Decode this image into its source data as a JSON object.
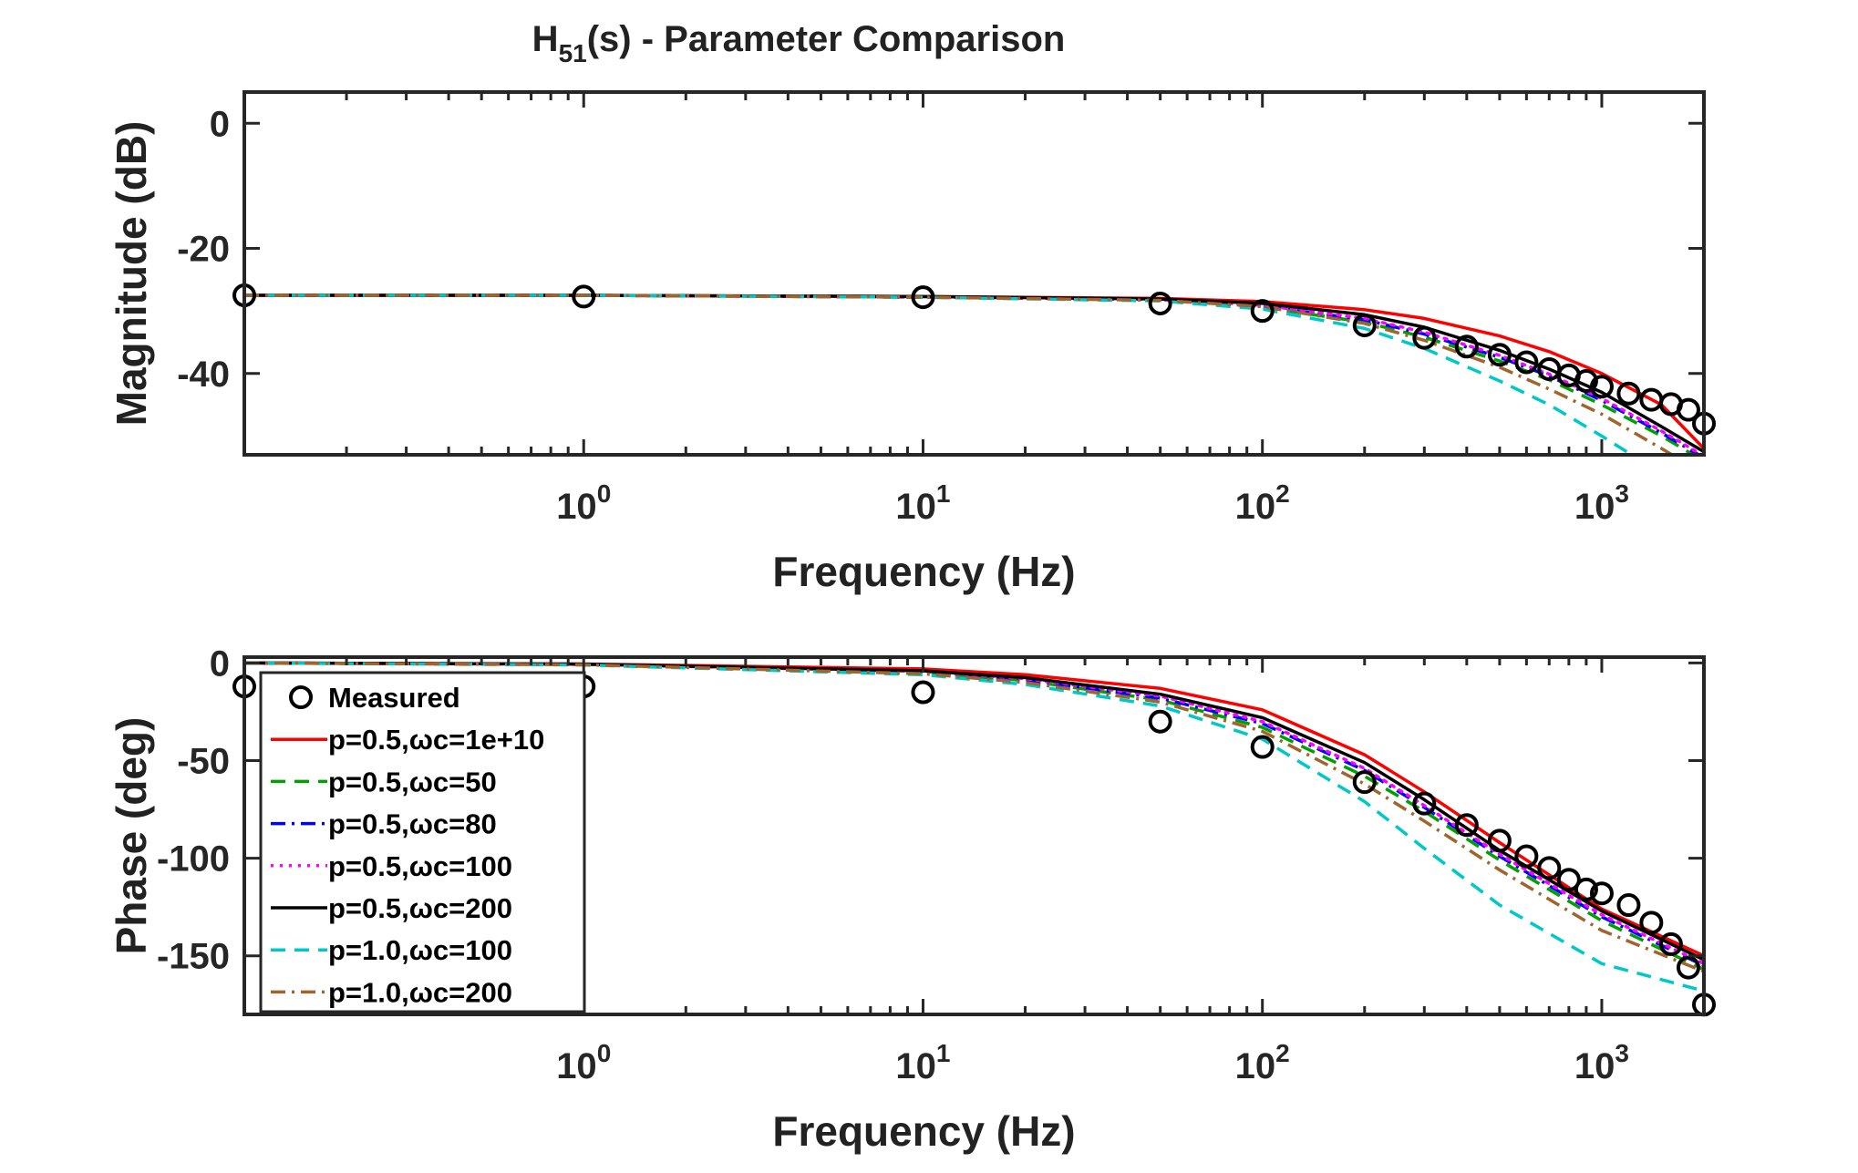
{
  "figure": {
    "title_main": "H",
    "title_sub": "51",
    "title_rest": "(s) - Parameter Comparison"
  },
  "legend": [
    {
      "label": "Measured",
      "color": "#000000",
      "style": "marker"
    },
    {
      "label": "p=0.5,ωc=1e+10",
      "color": "#ff0000",
      "style": "solid"
    },
    {
      "label": "p=0.5,ωc=50",
      "color": "#00a000",
      "style": "dashed"
    },
    {
      "label": "p=0.5,ωc=80",
      "color": "#0000ff",
      "style": "dashdot"
    },
    {
      "label": "p=0.5,ωc=100",
      "color": "#ff00ff",
      "style": "dotted"
    },
    {
      "label": "p=0.5,ωc=200",
      "color": "#000000",
      "style": "solid"
    },
    {
      "label": "p=1.0,ωc=100",
      "color": "#00c8c8",
      "style": "dashed"
    },
    {
      "label": "p=1.0,ωc=200",
      "color": "#a0642d",
      "style": "dashdot"
    }
  ],
  "chart_data": [
    {
      "type": "line",
      "xscale": "log",
      "xlim": [
        0.1,
        2000
      ],
      "ylim": [
        -53,
        5
      ],
      "xlabel": "Frequency (Hz)",
      "ylabel": "Magnitude (dB)",
      "xticks": [
        1,
        10,
        100,
        1000
      ],
      "xtick_labels": [
        {
          "base": "10",
          "exp": "0"
        },
        {
          "base": "10",
          "exp": "1"
        },
        {
          "base": "10",
          "exp": "2"
        },
        {
          "base": "10",
          "exp": "3"
        }
      ],
      "yticks": [
        0,
        -20,
        -40
      ],
      "ytick_labels": [
        "0",
        "-20",
        "-40"
      ],
      "grid": false,
      "measured": {
        "name": "Measured",
        "x": [
          0.1,
          1,
          10,
          50,
          100,
          200,
          300,
          400,
          500,
          600,
          700,
          800,
          900,
          1000,
          1200,
          1400,
          1600,
          1800,
          2000
        ],
        "y": [
          -27.5,
          -27.7,
          -27.8,
          -28.8,
          -30.0,
          -32.3,
          -34.3,
          -35.7,
          -37.0,
          -38.2,
          -39.3,
          -40.3,
          -41.2,
          -42.1,
          -43.2,
          -44.2,
          -44.9,
          -45.8,
          -48.0
        ]
      },
      "series": [
        {
          "name": "p=0.5,ωc=1e+10",
          "x": [
            0.1,
            1,
            10,
            50,
            100,
            200,
            300,
            500,
            700,
            1000,
            1500,
            2000
          ],
          "y": [
            -27.5,
            -27.5,
            -27.7,
            -28.0,
            -28.5,
            -29.8,
            -31.2,
            -34.0,
            -36.5,
            -40.0,
            -45.0,
            -52.0
          ]
        },
        {
          "name": "p=0.5,ωc=50",
          "x": [
            0.1,
            1,
            10,
            50,
            100,
            200,
            300,
            500,
            700,
            1000,
            1500,
            2000
          ],
          "y": [
            -27.5,
            -27.5,
            -27.8,
            -28.3,
            -29.4,
            -31.8,
            -34.2,
            -38.0,
            -41.0,
            -45.0,
            -50.0,
            -54.0
          ]
        },
        {
          "name": "p=0.5,ωc=80",
          "x": [
            0.1,
            1,
            10,
            50,
            100,
            200,
            300,
            500,
            700,
            1000,
            1500,
            2000
          ],
          "y": [
            -27.5,
            -27.5,
            -27.8,
            -28.2,
            -29.2,
            -31.4,
            -33.7,
            -37.4,
            -40.4,
            -44.3,
            -49.5,
            -53.5
          ]
        },
        {
          "name": "p=0.5,ωc=100",
          "x": [
            0.1,
            1,
            10,
            50,
            100,
            200,
            300,
            500,
            700,
            1000,
            1500,
            2000
          ],
          "y": [
            -27.5,
            -27.5,
            -27.8,
            -28.2,
            -29.1,
            -31.2,
            -33.4,
            -37.1,
            -40.1,
            -44.0,
            -49.2,
            -53.2
          ]
        },
        {
          "name": "p=0.5,ωc=200",
          "x": [
            0.1,
            1,
            10,
            50,
            100,
            200,
            300,
            500,
            700,
            1000,
            1500,
            2000
          ],
          "y": [
            -27.5,
            -27.5,
            -27.7,
            -28.1,
            -28.8,
            -30.6,
            -32.6,
            -36.3,
            -39.3,
            -43.0,
            -48.5,
            -52.5
          ]
        },
        {
          "name": "p=1.0,ωc=100",
          "x": [
            0.1,
            1,
            10,
            50,
            100,
            200,
            300,
            500,
            700,
            1000,
            1500,
            2000
          ],
          "y": [
            -27.5,
            -27.5,
            -27.8,
            -28.4,
            -29.7,
            -32.8,
            -36.0,
            -41.2,
            -45.0,
            -50.0,
            -56.0,
            -60.0
          ]
        },
        {
          "name": "p=1.0,ωc=200",
          "x": [
            0.1,
            1,
            10,
            50,
            100,
            200,
            300,
            500,
            700,
            1000,
            1500,
            2000
          ],
          "y": [
            -27.5,
            -27.5,
            -27.8,
            -28.3,
            -29.3,
            -32.0,
            -34.7,
            -39.0,
            -42.5,
            -46.5,
            -52.0,
            -56.0
          ]
        }
      ]
    },
    {
      "type": "line",
      "xscale": "log",
      "xlim": [
        0.1,
        2000
      ],
      "ylim": [
        -180,
        3
      ],
      "xlabel": "Frequency (Hz)",
      "ylabel": "Phase (deg)",
      "xticks": [
        1,
        10,
        100,
        1000
      ],
      "xtick_labels": [
        {
          "base": "10",
          "exp": "0"
        },
        {
          "base": "10",
          "exp": "1"
        },
        {
          "base": "10",
          "exp": "2"
        },
        {
          "base": "10",
          "exp": "3"
        }
      ],
      "yticks": [
        0,
        -50,
        -100,
        -150
      ],
      "ytick_labels": [
        "0",
        "-50",
        "-100",
        "-150"
      ],
      "grid": false,
      "legend_position": "bottom-left",
      "measured": {
        "name": "Measured",
        "x": [
          0.1,
          1,
          10,
          50,
          100,
          200,
          300,
          400,
          500,
          600,
          700,
          800,
          900,
          1000,
          1200,
          1400,
          1600,
          1800,
          2000
        ],
        "y": [
          -12,
          -12,
          -15,
          -30,
          -43,
          -61,
          -72,
          -83,
          -91,
          -99,
          -105,
          -111,
          -116,
          -118,
          -124,
          -133,
          -144,
          -156,
          -175
        ]
      },
      "series": [
        {
          "name": "p=0.5,ωc=1e+10",
          "x": [
            0.1,
            1,
            10,
            20,
            50,
            100,
            200,
            300,
            500,
            1000,
            2000
          ],
          "y": [
            0,
            -0.5,
            -3,
            -6,
            -13,
            -24,
            -47,
            -66,
            -92,
            -126,
            -150
          ]
        },
        {
          "name": "p=0.5,ωc=50",
          "x": [
            0.1,
            1,
            10,
            20,
            50,
            100,
            200,
            300,
            500,
            1000,
            2000
          ],
          "y": [
            0,
            -0.8,
            -5,
            -9,
            -19,
            -33,
            -58,
            -76,
            -101,
            -132,
            -157
          ]
        },
        {
          "name": "p=0.5,ωc=80",
          "x": [
            0.1,
            1,
            10,
            20,
            50,
            100,
            200,
            300,
            500,
            1000,
            2000
          ],
          "y": [
            0,
            -0.7,
            -4.5,
            -8.5,
            -18,
            -31,
            -55,
            -74,
            -99,
            -130,
            -155
          ]
        },
        {
          "name": "p=0.5,ωc=100",
          "x": [
            0.1,
            1,
            10,
            20,
            50,
            100,
            200,
            300,
            500,
            1000,
            2000
          ],
          "y": [
            0,
            -0.7,
            -4.3,
            -8,
            -17,
            -30,
            -54,
            -73,
            -98,
            -129,
            -154
          ]
        },
        {
          "name": "p=0.5,ωc=200",
          "x": [
            0.1,
            1,
            10,
            20,
            50,
            100,
            200,
            300,
            500,
            1000,
            2000
          ],
          "y": [
            0,
            -0.6,
            -4,
            -7.5,
            -16,
            -28,
            -51,
            -70,
            -96,
            -127,
            -152
          ]
        },
        {
          "name": "p=1.0,ωc=100",
          "x": [
            0.1,
            1,
            10,
            20,
            50,
            100,
            200,
            300,
            500,
            1000,
            2000
          ],
          "y": [
            0,
            -1,
            -6,
            -11,
            -22,
            -39,
            -71,
            -95,
            -124,
            -154,
            -168
          ]
        },
        {
          "name": "p=1.0,ωc=200",
          "x": [
            0.1,
            1,
            10,
            20,
            50,
            100,
            200,
            300,
            500,
            1000,
            2000
          ],
          "y": [
            0,
            -0.9,
            -5.5,
            -10,
            -20,
            -35,
            -62,
            -81,
            -106,
            -137,
            -158
          ]
        }
      ]
    }
  ]
}
